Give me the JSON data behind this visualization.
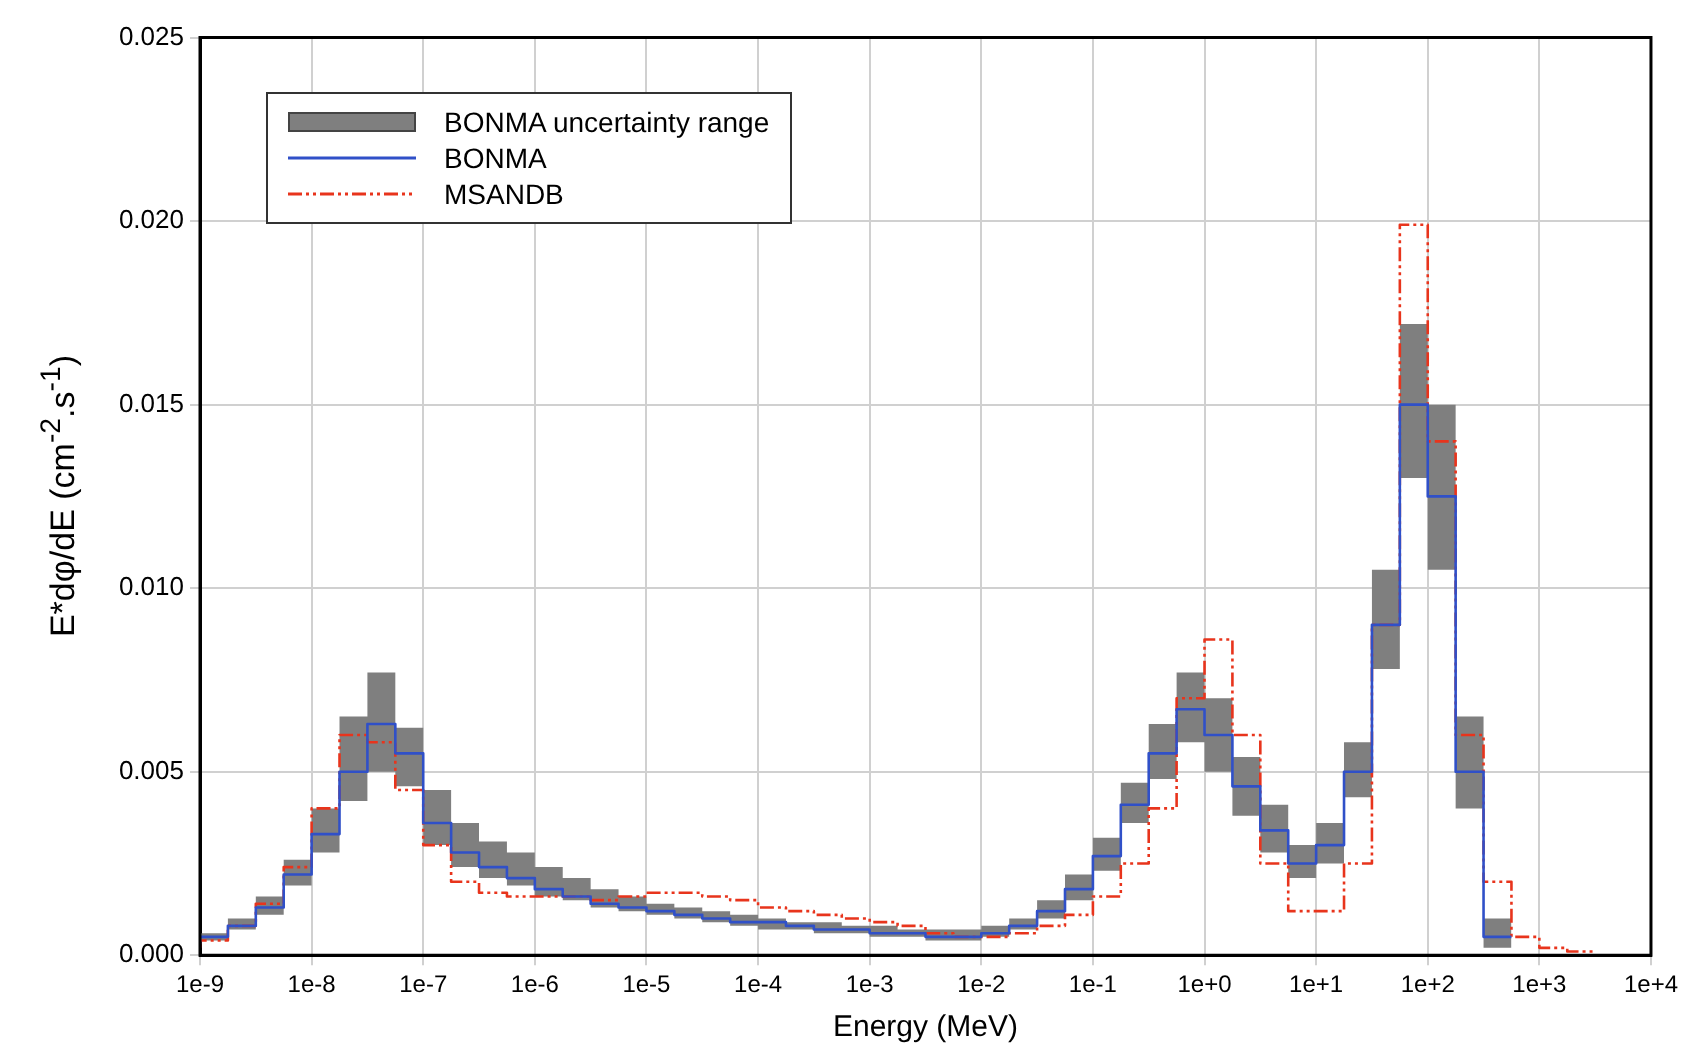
{
  "chart_data": {
    "type": "step",
    "xlabel": "Energy (MeV)",
    "ylabel": "E*dφ/dE (cm$^{-2}$.s$^{-1}$)",
    "x": [
      1e-09,
      1.778e-09,
      3.162e-09,
      5.623e-09,
      1e-08,
      1.778e-08,
      3.162e-08,
      5.623e-08,
      1e-07,
      1.778e-07,
      3.162e-07,
      5.623e-07,
      1e-06,
      1.778e-06,
      3.162e-06,
      5.623e-06,
      1e-05,
      1.778e-05,
      3.162e-05,
      5.623e-05,
      0.0001,
      0.0001778,
      0.0003162,
      0.0005623,
      0.001,
      0.001778,
      0.003162,
      0.005623,
      0.01,
      0.01778,
      0.03162,
      0.05623,
      0.1,
      0.1778,
      0.3162,
      0.5623,
      1,
      1.778,
      3.162,
      5.623,
      10,
      17.78,
      31.62,
      56.23,
      100,
      177.8,
      316.2,
      562.3,
      1000,
      1778,
      3162
    ],
    "series": [
      {
        "name": "BONMA",
        "color": "#3050c8",
        "line_style": "solid",
        "values": [
          0.0003,
          0.0005,
          0.0008,
          0.0013,
          0.0022,
          0.0033,
          0.005,
          0.0063,
          0.0055,
          0.0036,
          0.0028,
          0.0024,
          0.0021,
          0.0018,
          0.0016,
          0.0014,
          0.0013,
          0.0012,
          0.0011,
          0.001,
          0.0009,
          0.0009,
          0.0008,
          0.0007,
          0.0007,
          0.0006,
          0.0006,
          0.0005,
          0.0005,
          0.0006,
          0.0008,
          0.0012,
          0.0018,
          0.0027,
          0.0041,
          0.0055,
          0.0067,
          0.006,
          0.0046,
          0.0034,
          0.0025,
          0.003,
          0.005,
          0.009,
          0.015,
          0.0125,
          0.005,
          0.0005,
          null,
          null,
          null
        ],
        "lower": [
          0.0002,
          0.0004,
          0.0007,
          0.0011,
          0.0019,
          0.0028,
          0.0042,
          0.005,
          0.0046,
          0.003,
          0.0024,
          0.0021,
          0.0019,
          0.0016,
          0.0015,
          0.0013,
          0.0012,
          0.0011,
          0.001,
          0.0009,
          0.0008,
          0.0007,
          0.0007,
          0.0006,
          0.0006,
          0.0005,
          0.0005,
          0.0004,
          0.0004,
          0.0005,
          0.0007,
          0.001,
          0.0015,
          0.0023,
          0.0036,
          0.0048,
          0.0058,
          0.005,
          0.0038,
          0.0028,
          0.0021,
          0.0025,
          0.0043,
          0.0078,
          0.013,
          0.0105,
          0.004,
          0.0002,
          null,
          null,
          null
        ],
        "upper": [
          0.0004,
          0.0006,
          0.001,
          0.0016,
          0.0026,
          0.004,
          0.0065,
          0.0077,
          0.0062,
          0.0045,
          0.0036,
          0.0031,
          0.0028,
          0.0024,
          0.0021,
          0.0018,
          0.0016,
          0.0014,
          0.0013,
          0.0012,
          0.0011,
          0.001,
          0.0009,
          0.0009,
          0.0008,
          0.0008,
          0.0007,
          0.0007,
          0.0007,
          0.0008,
          0.001,
          0.0015,
          0.0022,
          0.0032,
          0.0047,
          0.0063,
          0.0077,
          0.007,
          0.0054,
          0.0041,
          0.003,
          0.0036,
          0.0058,
          0.0105,
          0.0172,
          0.015,
          0.0065,
          0.001,
          null,
          null,
          null
        ]
      },
      {
        "name": "MSANDB",
        "color": "#e8341c",
        "line_style": "dashed",
        "values": [
          0.0002,
          0.0004,
          0.0008,
          0.0014,
          0.0024,
          0.004,
          0.006,
          0.0058,
          0.0045,
          0.003,
          0.002,
          0.0017,
          0.0016,
          0.0016,
          0.0016,
          0.0015,
          0.0016,
          0.0017,
          0.0017,
          0.0016,
          0.0015,
          0.0013,
          0.0012,
          0.0011,
          0.001,
          0.0009,
          0.0008,
          0.0006,
          0.0005,
          0.0005,
          0.0006,
          0.0008,
          0.0011,
          0.0016,
          0.0025,
          0.004,
          0.007,
          0.0086,
          0.006,
          0.0025,
          0.0012,
          0.0012,
          0.0025,
          0.009,
          0.0199,
          0.014,
          0.006,
          0.002,
          0.0005,
          0.0002,
          0.0001
        ]
      }
    ],
    "log": "x",
    "xlim": [
      1e-09,
      10000
    ],
    "xticks": [
      {
        "value": 1e-09,
        "label": "1e-9"
      },
      {
        "value": 1e-08,
        "label": "1e-8"
      },
      {
        "value": 1e-07,
        "label": "1e-7"
      },
      {
        "value": 1e-06,
        "label": "1e-6"
      },
      {
        "value": 1e-05,
        "label": "1e-5"
      },
      {
        "value": 0.0001,
        "label": "1e-4"
      },
      {
        "value": 0.001,
        "label": "1e-3"
      },
      {
        "value": 0.01,
        "label": "1e-2"
      },
      {
        "value": 0.1,
        "label": "1e-1"
      },
      {
        "value": 1,
        "label": "1e+0"
      },
      {
        "value": 10,
        "label": "1e+1"
      },
      {
        "value": 100,
        "label": "1e+2"
      },
      {
        "value": 1000,
        "label": "1e+3"
      },
      {
        "value": 10000,
        "label": "1e+4"
      }
    ],
    "ylim": [
      0,
      0.025
    ],
    "yticks": [
      {
        "value": 0,
        "label": "0.000"
      },
      {
        "value": 0.005,
        "label": "0.005"
      },
      {
        "value": 0.01,
        "label": "0.010"
      },
      {
        "value": 0.015,
        "label": "0.015"
      },
      {
        "value": 0.02,
        "label": "0.020"
      },
      {
        "value": 0.025,
        "label": "0.025"
      }
    ],
    "annotations": [
      "BONMA uncertainty range"
    ],
    "grid": true,
    "legend": "top left",
    "marker": "none"
  }
}
